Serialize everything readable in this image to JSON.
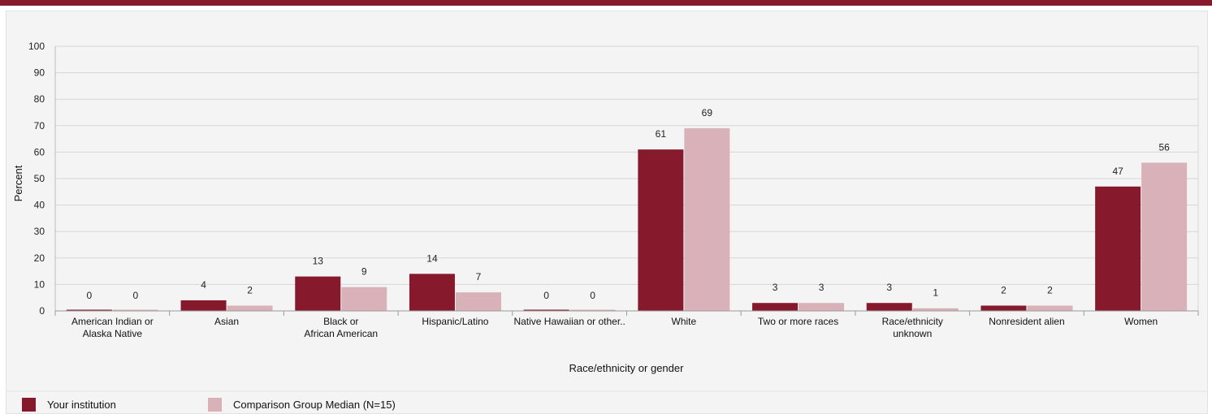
{
  "chart_data": {
    "type": "bar",
    "ylabel": "Percent",
    "xlabel": "Race/ethnicity or gender",
    "ylim": [
      0,
      100
    ],
    "yticks": [
      0,
      10,
      20,
      30,
      40,
      50,
      60,
      70,
      80,
      90,
      100
    ],
    "grid": true,
    "legend_position": "bottom",
    "categories": [
      [
        "American Indian or",
        "Alaska Native"
      ],
      [
        "Asian"
      ],
      [
        "Black or",
        "African American"
      ],
      [
        "Hispanic/Latino"
      ],
      [
        "Native Hawaiian  or other.."
      ],
      [
        "White"
      ],
      [
        "Two or more races"
      ],
      [
        "Race/ethnicity",
        "unknown"
      ],
      [
        "Nonresident alien"
      ],
      [
        "Women"
      ]
    ],
    "series": [
      {
        "name": "Your institution",
        "color": "#861a2c",
        "values": [
          0,
          4,
          13,
          14,
          0,
          61,
          3,
          3,
          2,
          47
        ]
      },
      {
        "name": "Comparison Group Median (N=15)",
        "color": "#d8b2b8",
        "values": [
          0,
          2,
          9,
          7,
          0,
          69,
          3,
          1,
          2,
          56
        ]
      }
    ]
  },
  "colors": {
    "header_bar": "#861a2c",
    "grid": "#d6d6d6",
    "panel_background": "#f4f4f4"
  }
}
